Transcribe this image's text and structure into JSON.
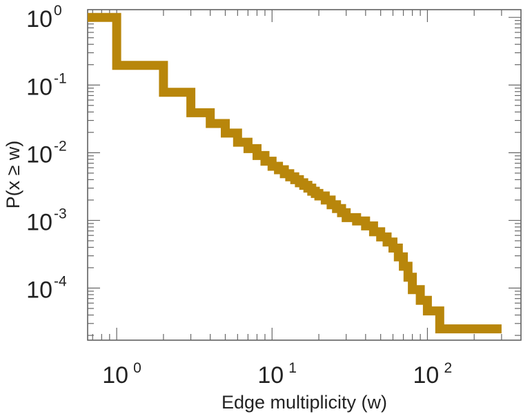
{
  "chart_data": {
    "type": "line",
    "xlabel": "Edge multiplicity (w)",
    "ylabel": "P(x ≥ w)",
    "title": "",
    "x_scale": "log",
    "y_scale": "log",
    "xlim": [
      0.65,
      400
    ],
    "ylim": [
      1.7e-05,
      1.3
    ],
    "grid": false,
    "legend": "none",
    "x_ticks": [
      {
        "base": "10",
        "exp": "0",
        "value": 1
      },
      {
        "base": "10",
        "exp": "1",
        "value": 10
      },
      {
        "base": "10",
        "exp": "2",
        "value": 100
      }
    ],
    "y_ticks": [
      {
        "base": "10",
        "exp": "0",
        "value": 1
      },
      {
        "base": "10",
        "exp": "-1",
        "value": 0.1
      },
      {
        "base": "10",
        "exp": "-2",
        "value": 0.01
      },
      {
        "base": "10",
        "exp": "-3",
        "value": 0.001
      },
      {
        "base": "10",
        "exp": "-4",
        "value": 0.0001
      }
    ],
    "series": [
      {
        "color": "#b8860b",
        "step": "post",
        "x": [
          0.65,
          1,
          2,
          3,
          4,
          5,
          6,
          7,
          8,
          9,
          10,
          11,
          12,
          13,
          14,
          15,
          16,
          17,
          18,
          19,
          20,
          22,
          24,
          26,
          28,
          30,
          35,
          40,
          45,
          50,
          55,
          60,
          65,
          70,
          75,
          80,
          90,
          100,
          120,
          300
        ],
        "y": [
          1.0,
          0.195,
          0.078,
          0.039,
          0.027,
          0.0195,
          0.0143,
          0.0115,
          0.0091,
          0.0075,
          0.0063,
          0.0056,
          0.0049,
          0.0044,
          0.004,
          0.0036,
          0.0033,
          0.003,
          0.0027,
          0.0025,
          0.0023,
          0.002,
          0.0017,
          0.0015,
          0.0013,
          0.0011,
          0.00098,
          0.00083,
          0.00068,
          0.00057,
          0.00048,
          0.00039,
          0.00029,
          0.00021,
          0.000145,
          9.5e-05,
          6.6e-05,
          4.6e-05,
          2.5e-05,
          2.5e-05
        ]
      }
    ]
  }
}
